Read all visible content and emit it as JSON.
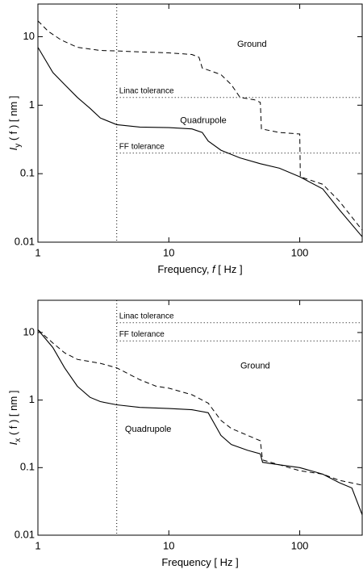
{
  "chart_data": [
    {
      "type": "line",
      "ylabel": [
        "I",
        "y",
        " ( f ) [ nm ]"
      ],
      "xlabel": [
        "Frequency, ",
        "f",
        "  [ Hz ]"
      ],
      "log_x": true,
      "log_y": true,
      "xlim": [
        1,
        300
      ],
      "ylim": [
        0.01,
        30
      ],
      "xticks": [
        1,
        10,
        100
      ],
      "yticks": [
        0.01,
        0.1,
        1,
        10
      ],
      "vline_x": 4,
      "series": [
        {
          "name": "Ground",
          "style": "dashed",
          "color": "#000000",
          "x": [
            1,
            1.2,
            1.5,
            2,
            3,
            4,
            6,
            10,
            15,
            17,
            18,
            25,
            30,
            35,
            45,
            50,
            51,
            70,
            100,
            101,
            150,
            200,
            300
          ],
          "values": [
            17,
            12,
            9,
            7,
            6.3,
            6.2,
            6,
            5.8,
            5.5,
            5,
            3.5,
            2.8,
            2,
            1.3,
            1.2,
            1.1,
            0.45,
            0.4,
            0.38,
            0.09,
            0.07,
            0.04,
            0.015
          ]
        },
        {
          "name": "Quadrupole",
          "style": "solid",
          "color": "#000000",
          "x": [
            1,
            1.3,
            1.6,
            2,
            2.5,
            3,
            4,
            6,
            10,
            15,
            18,
            20,
            25,
            35,
            50,
            70,
            100,
            150,
            200,
            300
          ],
          "values": [
            7,
            3,
            2,
            1.3,
            0.9,
            0.65,
            0.52,
            0.48,
            0.47,
            0.45,
            0.4,
            0.3,
            0.22,
            0.17,
            0.14,
            0.12,
            0.09,
            0.06,
            0.03,
            0.012
          ]
        },
        {
          "name": "Linac tolerance",
          "style": "dotted",
          "color": "#000000",
          "x": [
            4,
            300
          ],
          "values": [
            1.3,
            1.3
          ]
        },
        {
          "name": "FF tolerance",
          "style": "dotted",
          "color": "#000000",
          "x": [
            4,
            300
          ],
          "values": [
            0.2,
            0.2
          ]
        }
      ]
    },
    {
      "type": "line",
      "ylabel": [
        "I",
        "x",
        " ( f ) [ nm ]"
      ],
      "xlabel": [
        "Frequency [ Hz ]"
      ],
      "log_x": true,
      "log_y": true,
      "xlim": [
        1,
        300
      ],
      "ylim": [
        0.01,
        30
      ],
      "xticks": [
        1,
        10,
        100
      ],
      "yticks": [
        0.01,
        0.1,
        1,
        10
      ],
      "vline_x": 4,
      "series": [
        {
          "name": "Ground",
          "style": "dashed",
          "color": "#000000",
          "x": [
            1,
            1.3,
            1.6,
            2,
            3,
            4,
            6,
            8,
            10,
            15,
            20,
            25,
            30,
            40,
            50,
            52,
            70,
            100,
            150,
            200,
            300
          ],
          "values": [
            11,
            7,
            5,
            4,
            3.5,
            3,
            2,
            1.6,
            1.5,
            1.2,
            0.9,
            0.5,
            0.38,
            0.3,
            0.25,
            0.13,
            0.11,
            0.09,
            0.08,
            0.065,
            0.055
          ]
        },
        {
          "name": "Quadrupole",
          "style": "solid",
          "color": "#000000",
          "x": [
            1,
            1.3,
            1.6,
            2,
            2.5,
            3,
            4,
            6,
            10,
            15,
            20,
            23,
            25,
            30,
            40,
            50,
            52,
            70,
            100,
            150,
            200,
            250,
            300
          ],
          "values": [
            11,
            6,
            3,
            1.6,
            1.1,
            0.95,
            0.85,
            0.78,
            0.75,
            0.72,
            0.65,
            0.4,
            0.3,
            0.22,
            0.18,
            0.16,
            0.12,
            0.11,
            0.1,
            0.08,
            0.06,
            0.05,
            0.02
          ]
        },
        {
          "name": "Linac tolerance",
          "style": "dotted",
          "color": "#000000",
          "x": [
            4,
            300
          ],
          "values": [
            14,
            14
          ]
        },
        {
          "name": "FF tolerance",
          "style": "dotted",
          "color": "#000000",
          "x": [
            4,
            300
          ],
          "values": [
            7.5,
            7.5
          ]
        }
      ]
    }
  ]
}
